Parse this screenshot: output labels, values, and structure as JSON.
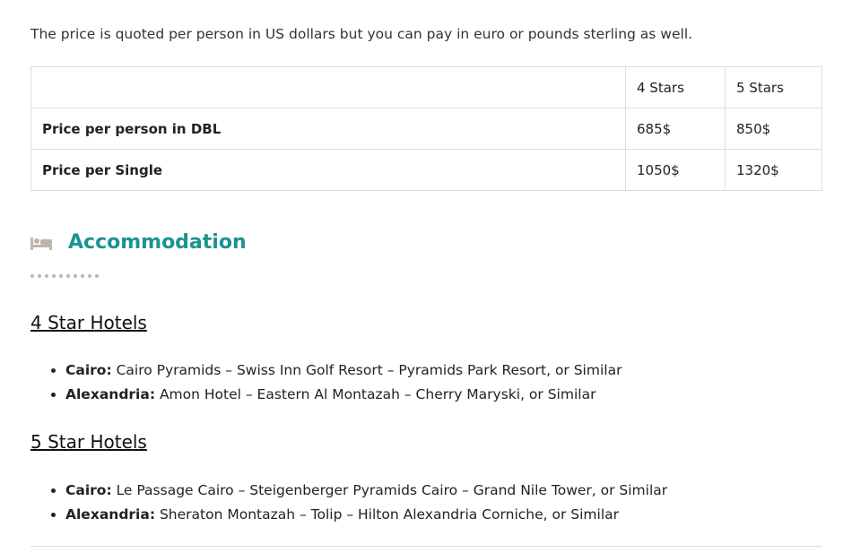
{
  "intro": "The price is quoted per person in US dollars but you can pay in euro or pounds sterling as well.",
  "table": {
    "headers": [
      "",
      "4 Stars",
      "5 Stars"
    ],
    "rows": [
      [
        "Price per person in DBL",
        "685$",
        "850$"
      ],
      [
        "Price per Single",
        "1050$",
        "1320$"
      ]
    ]
  },
  "section": {
    "icon": "bed-icon",
    "title": "Accommodation",
    "accent": "#1a9490"
  },
  "groups": [
    {
      "title": "4 Star Hotels",
      "items": [
        {
          "city": "Cairo:",
          "text": " Cairo Pyramids – Swiss Inn Golf Resort – Pyramids Park Resort, or Similar"
        },
        {
          "city": "Alexandria:",
          "text": " Amon Hotel – Eastern Al Montazah – Cherry Maryski, or Similar"
        }
      ]
    },
    {
      "title": "5 Star Hotels",
      "items": [
        {
          "city": "Cairo:",
          "text": " Le Passage Cairo – Steigenberger Pyramids Cairo – Grand Nile Tower, or Similar"
        },
        {
          "city": "Alexandria:",
          "text": " Sheraton Montazah – Tolip – Hilton Alexandria Corniche, or Similar"
        }
      ]
    }
  ]
}
